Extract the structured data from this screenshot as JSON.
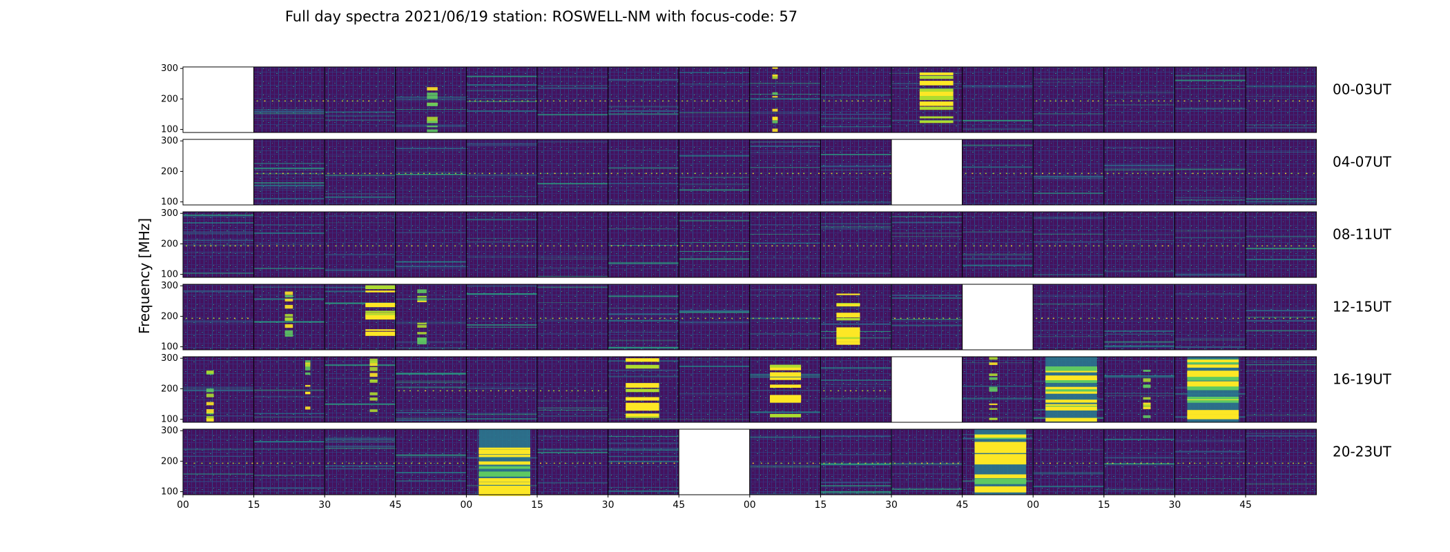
{
  "chart_data": {
    "type": "heatmap",
    "title": "Full day spectra 2021/06/19 station: ROSWELL-NM with focus-code: 57",
    "ylabel": "Frequency [MHz]",
    "ylim": [
      90,
      305
    ],
    "yticks": [
      100,
      200,
      300
    ],
    "colormap": "viridis",
    "rows": [
      {
        "label": "00-03UT",
        "panels": [
          "missing",
          "sparse",
          "dotted-line",
          "bursty",
          "lines",
          "dotted-line",
          "sparse",
          "sparse",
          "bursty",
          "sparse",
          "saturated-burst",
          "quiet",
          "sparse",
          "sparse",
          "dotted-line",
          "sparse"
        ]
      },
      {
        "label": "04-07UT",
        "panels": [
          "missing",
          "lines",
          "dotted-line",
          "dotted-line",
          "dotted-line",
          "dotted-line",
          "dotted-line",
          "dotted-line",
          "dotted-line",
          "dotted-line",
          "missing",
          "dotted-line",
          "dotted-line",
          "dotted-line",
          "dotted-line",
          "dotted-line"
        ]
      },
      {
        "label": "08-11UT",
        "panels": [
          "lines",
          "dotted-line",
          "dotted-line",
          "dotted-line",
          "dotted-line",
          "dotted-line",
          "dotted-line",
          "dotted-line",
          "dotted-line",
          "dotted-line",
          "dotted-line",
          "dotted-line",
          "dotted-line",
          "dotted-line",
          "dotted-line",
          "dotted-line"
        ]
      },
      {
        "label": "12-15UT",
        "panels": [
          "dotted-line",
          "bursty",
          "saturated-burst",
          "bursty",
          "dotted-line",
          "sparse",
          "lines",
          "dotted-line",
          "dotted-line",
          "saturated-burst",
          "sparse",
          "missing",
          "sparse",
          "dotted-line",
          "dotted-line",
          "sparse"
        ]
      },
      {
        "label": "16-19UT",
        "panels": [
          "bursty",
          "bursty",
          "bursty",
          "lines",
          "sparse",
          "sparse",
          "saturated-burst",
          "quiet",
          "saturated-burst",
          "sparse",
          "missing",
          "bursty",
          "saturated",
          "bursty",
          "saturated",
          "quiet"
        ]
      },
      {
        "label": "20-23UT",
        "panels": [
          "sparse",
          "sparse",
          "lines",
          "sparse",
          "saturated",
          "sparse",
          "lines",
          "missing",
          "sparse",
          "lines",
          "sparse",
          "saturated",
          "sparse",
          "dotted-line",
          "dotted-line",
          "sparse"
        ]
      }
    ],
    "xticks": [
      "00",
      "15",
      "30",
      "45",
      "00",
      "15",
      "30",
      "45",
      "00",
      "15",
      "30",
      "45",
      "00",
      "15",
      "30",
      "45"
    ],
    "grid": false
  }
}
